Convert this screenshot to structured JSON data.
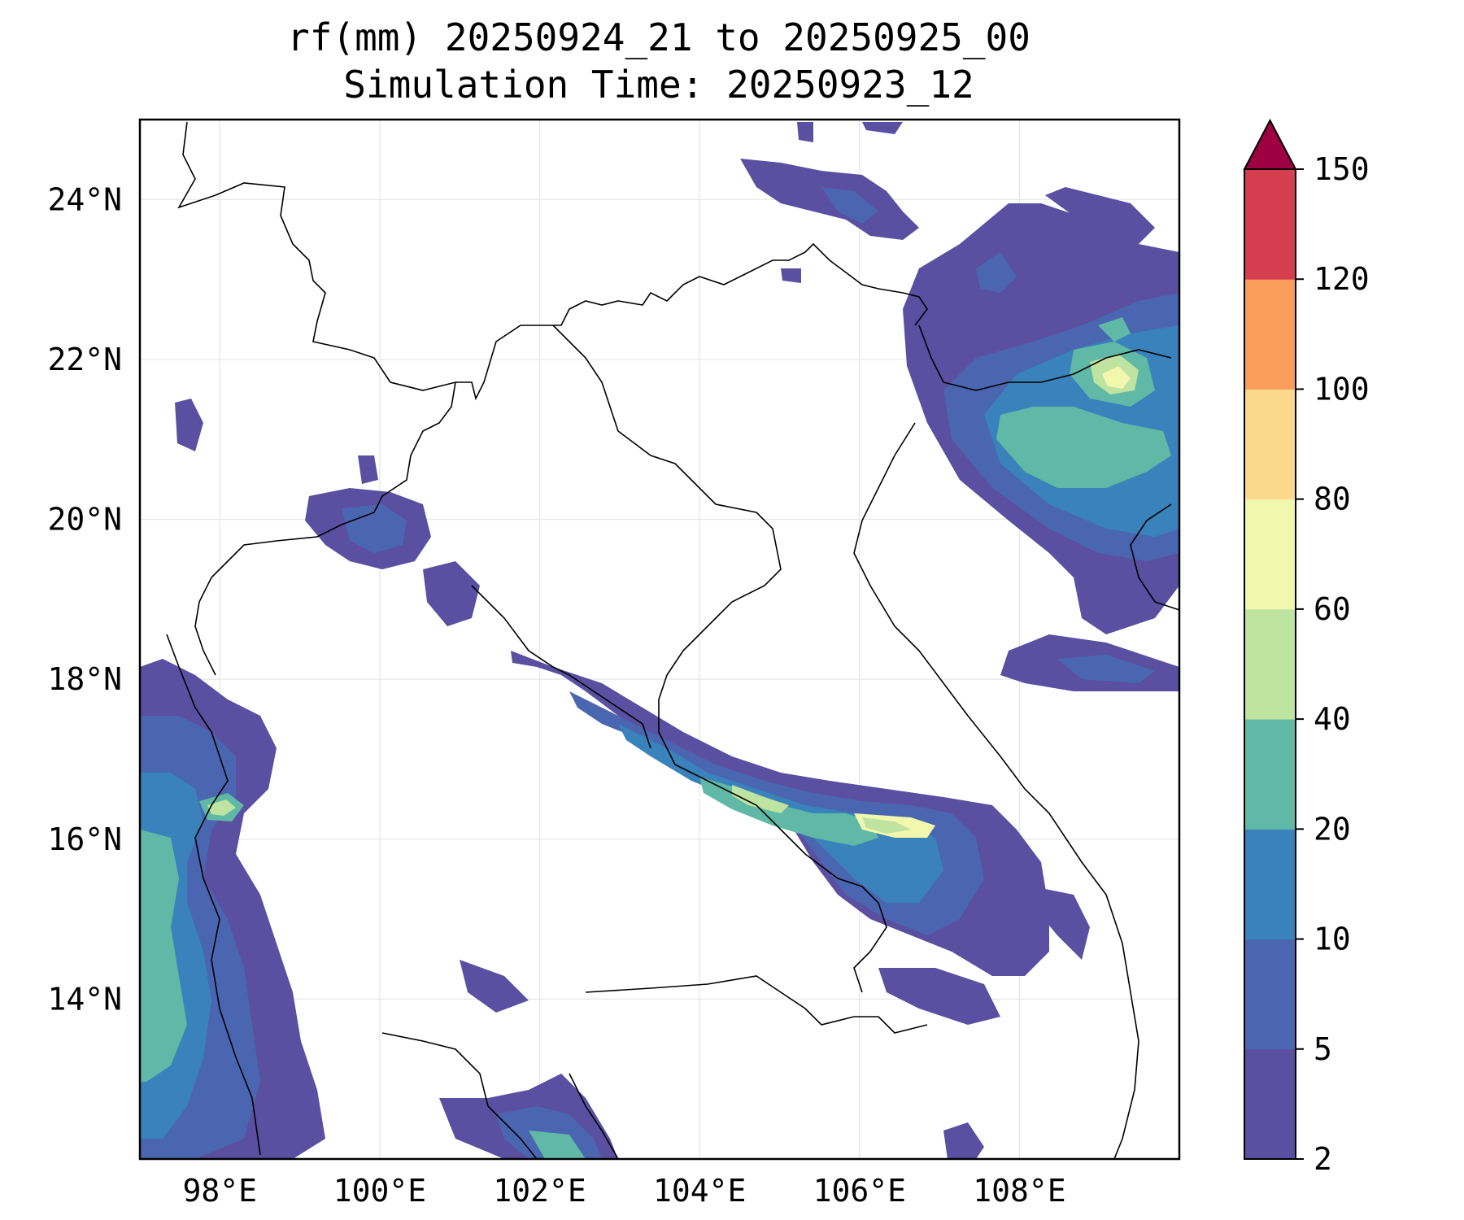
{
  "title_line1": "rf(mm) 20250924_21 to 20250925_00",
  "title_line2": "Simulation Time: 20250923_12",
  "map": {
    "lon_range": [
      97,
      110
    ],
    "lat_range": [
      12,
      25
    ],
    "lon_ticks": [
      98,
      100,
      102,
      104,
      106,
      108
    ],
    "lon_tick_labels": [
      "98°E",
      "100°E",
      "102°E",
      "104°E",
      "106°E",
      "108°E"
    ],
    "lat_ticks": [
      14,
      16,
      18,
      20,
      22,
      24
    ],
    "lat_tick_labels": [
      "14°N",
      "16°N",
      "18°N",
      "20°N",
      "22°N",
      "24°N"
    ],
    "grid": true
  },
  "colorbar": {
    "levels": [
      2,
      5,
      10,
      20,
      40,
      60,
      80,
      100,
      120,
      150
    ],
    "labels": [
      "2",
      "5",
      "10",
      "20",
      "40",
      "60",
      "80",
      "100",
      "120",
      "150"
    ],
    "colors": [
      "#5a4fa0",
      "#4b66b0",
      "#3a82bb",
      "#5fb9a6",
      "#bfe3a0",
      "#f2f7ae",
      "#fbd98c",
      "#f99c5c",
      "#d53e4f"
    ],
    "extend_color": "#9e0142",
    "extend": "max"
  },
  "colors": {
    "frame": "#000000",
    "coastline": "#000000",
    "grid": "#e6e6e6",
    "background": "#ffffff"
  }
}
